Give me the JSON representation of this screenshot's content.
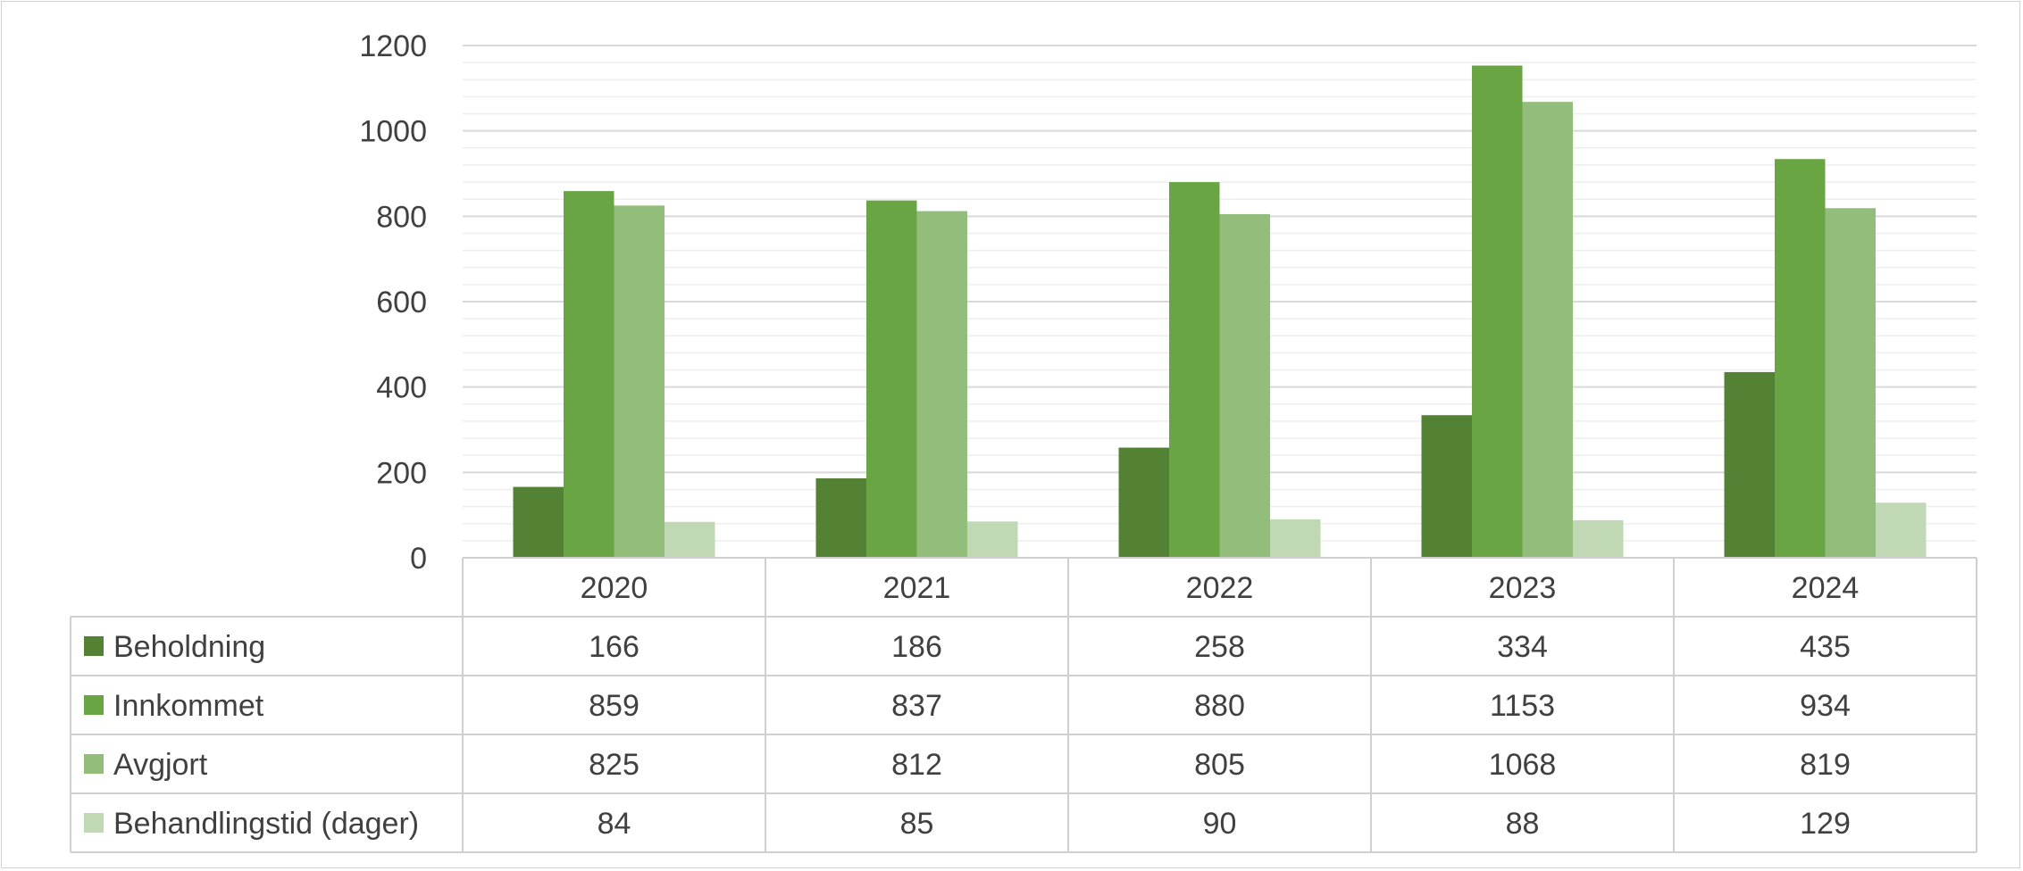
{
  "chart_data": {
    "type": "bar",
    "categories": [
      "2020",
      "2021",
      "2022",
      "2023",
      "2024"
    ],
    "series": [
      {
        "name": "Beholdning",
        "values": [
          166,
          186,
          258,
          334,
          435
        ],
        "color": "#548235"
      },
      {
        "name": "Innkommet",
        "values": [
          859,
          837,
          880,
          1153,
          934
        ],
        "color": "#6aa544"
      },
      {
        "name": "Avgjort",
        "values": [
          825,
          812,
          805,
          1068,
          819
        ],
        "color": "#92bd7a"
      },
      {
        "name": "Behandlingstid (dager)",
        "values": [
          84,
          85,
          90,
          88,
          129
        ],
        "color": "#c0d8b3"
      }
    ],
    "y_ticks": [
      "0",
      "200",
      "400",
      "600",
      "800",
      "1000",
      "1200"
    ],
    "ylim": [
      0,
      1200
    ],
    "grid": true,
    "legend": "data-table-below",
    "colors": {
      "gridline_major": "#d9d9d9",
      "gridline_minor": "#eeeeee",
      "table_border": "#d0d0d0",
      "text": "#404040"
    }
  }
}
